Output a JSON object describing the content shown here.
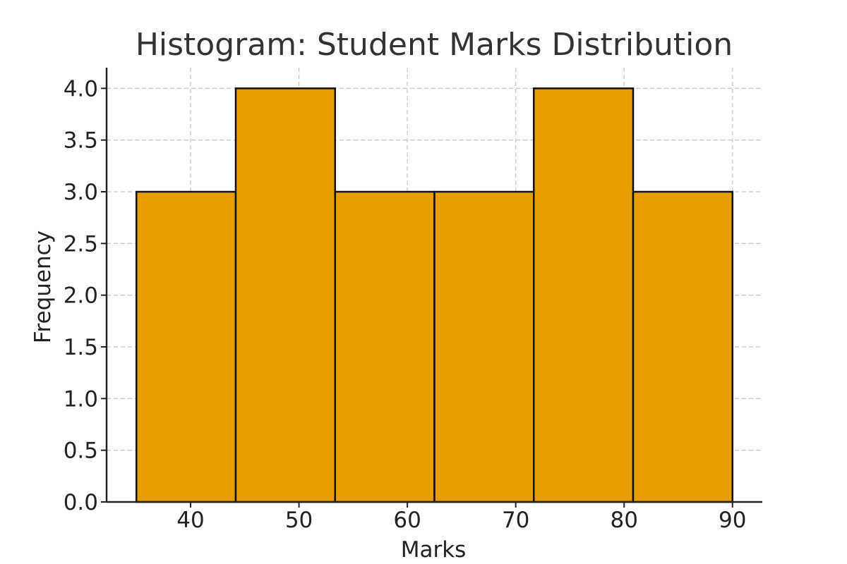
{
  "chart_data": {
    "type": "bar",
    "title": "Histogram: Student Marks Distribution",
    "xlabel": "Marks",
    "ylabel": "Frequency",
    "bins": [
      {
        "start": 35,
        "end": 44.1667,
        "value": 3
      },
      {
        "start": 44.1667,
        "end": 53.3333,
        "value": 4
      },
      {
        "start": 53.3333,
        "end": 62.5,
        "value": 3
      },
      {
        "start": 62.5,
        "end": 71.6667,
        "value": 3
      },
      {
        "start": 71.6667,
        "end": 80.8333,
        "value": 4
      },
      {
        "start": 80.8333,
        "end": 90,
        "value": 3
      }
    ],
    "xlim": [
      32.25,
      92.75
    ],
    "ylim": [
      0,
      4.2
    ],
    "xticks": [
      40,
      50,
      60,
      70,
      80,
      90
    ],
    "xtick_labels": [
      "40",
      "50",
      "60",
      "70",
      "80",
      "90"
    ],
    "yticks": [
      0,
      0.5,
      1,
      1.5,
      2,
      2.5,
      3,
      3.5,
      4
    ],
    "ytick_labels": [
      "0.0",
      "0.5",
      "1.0",
      "1.5",
      "2.0",
      "2.5",
      "3.0",
      "3.5",
      "4.0"
    ],
    "grid": true,
    "bar_color": "#E69F00",
    "edge_color": "#111111",
    "grid_color": "#c9c9c9",
    "axis_color": "#222222"
  }
}
